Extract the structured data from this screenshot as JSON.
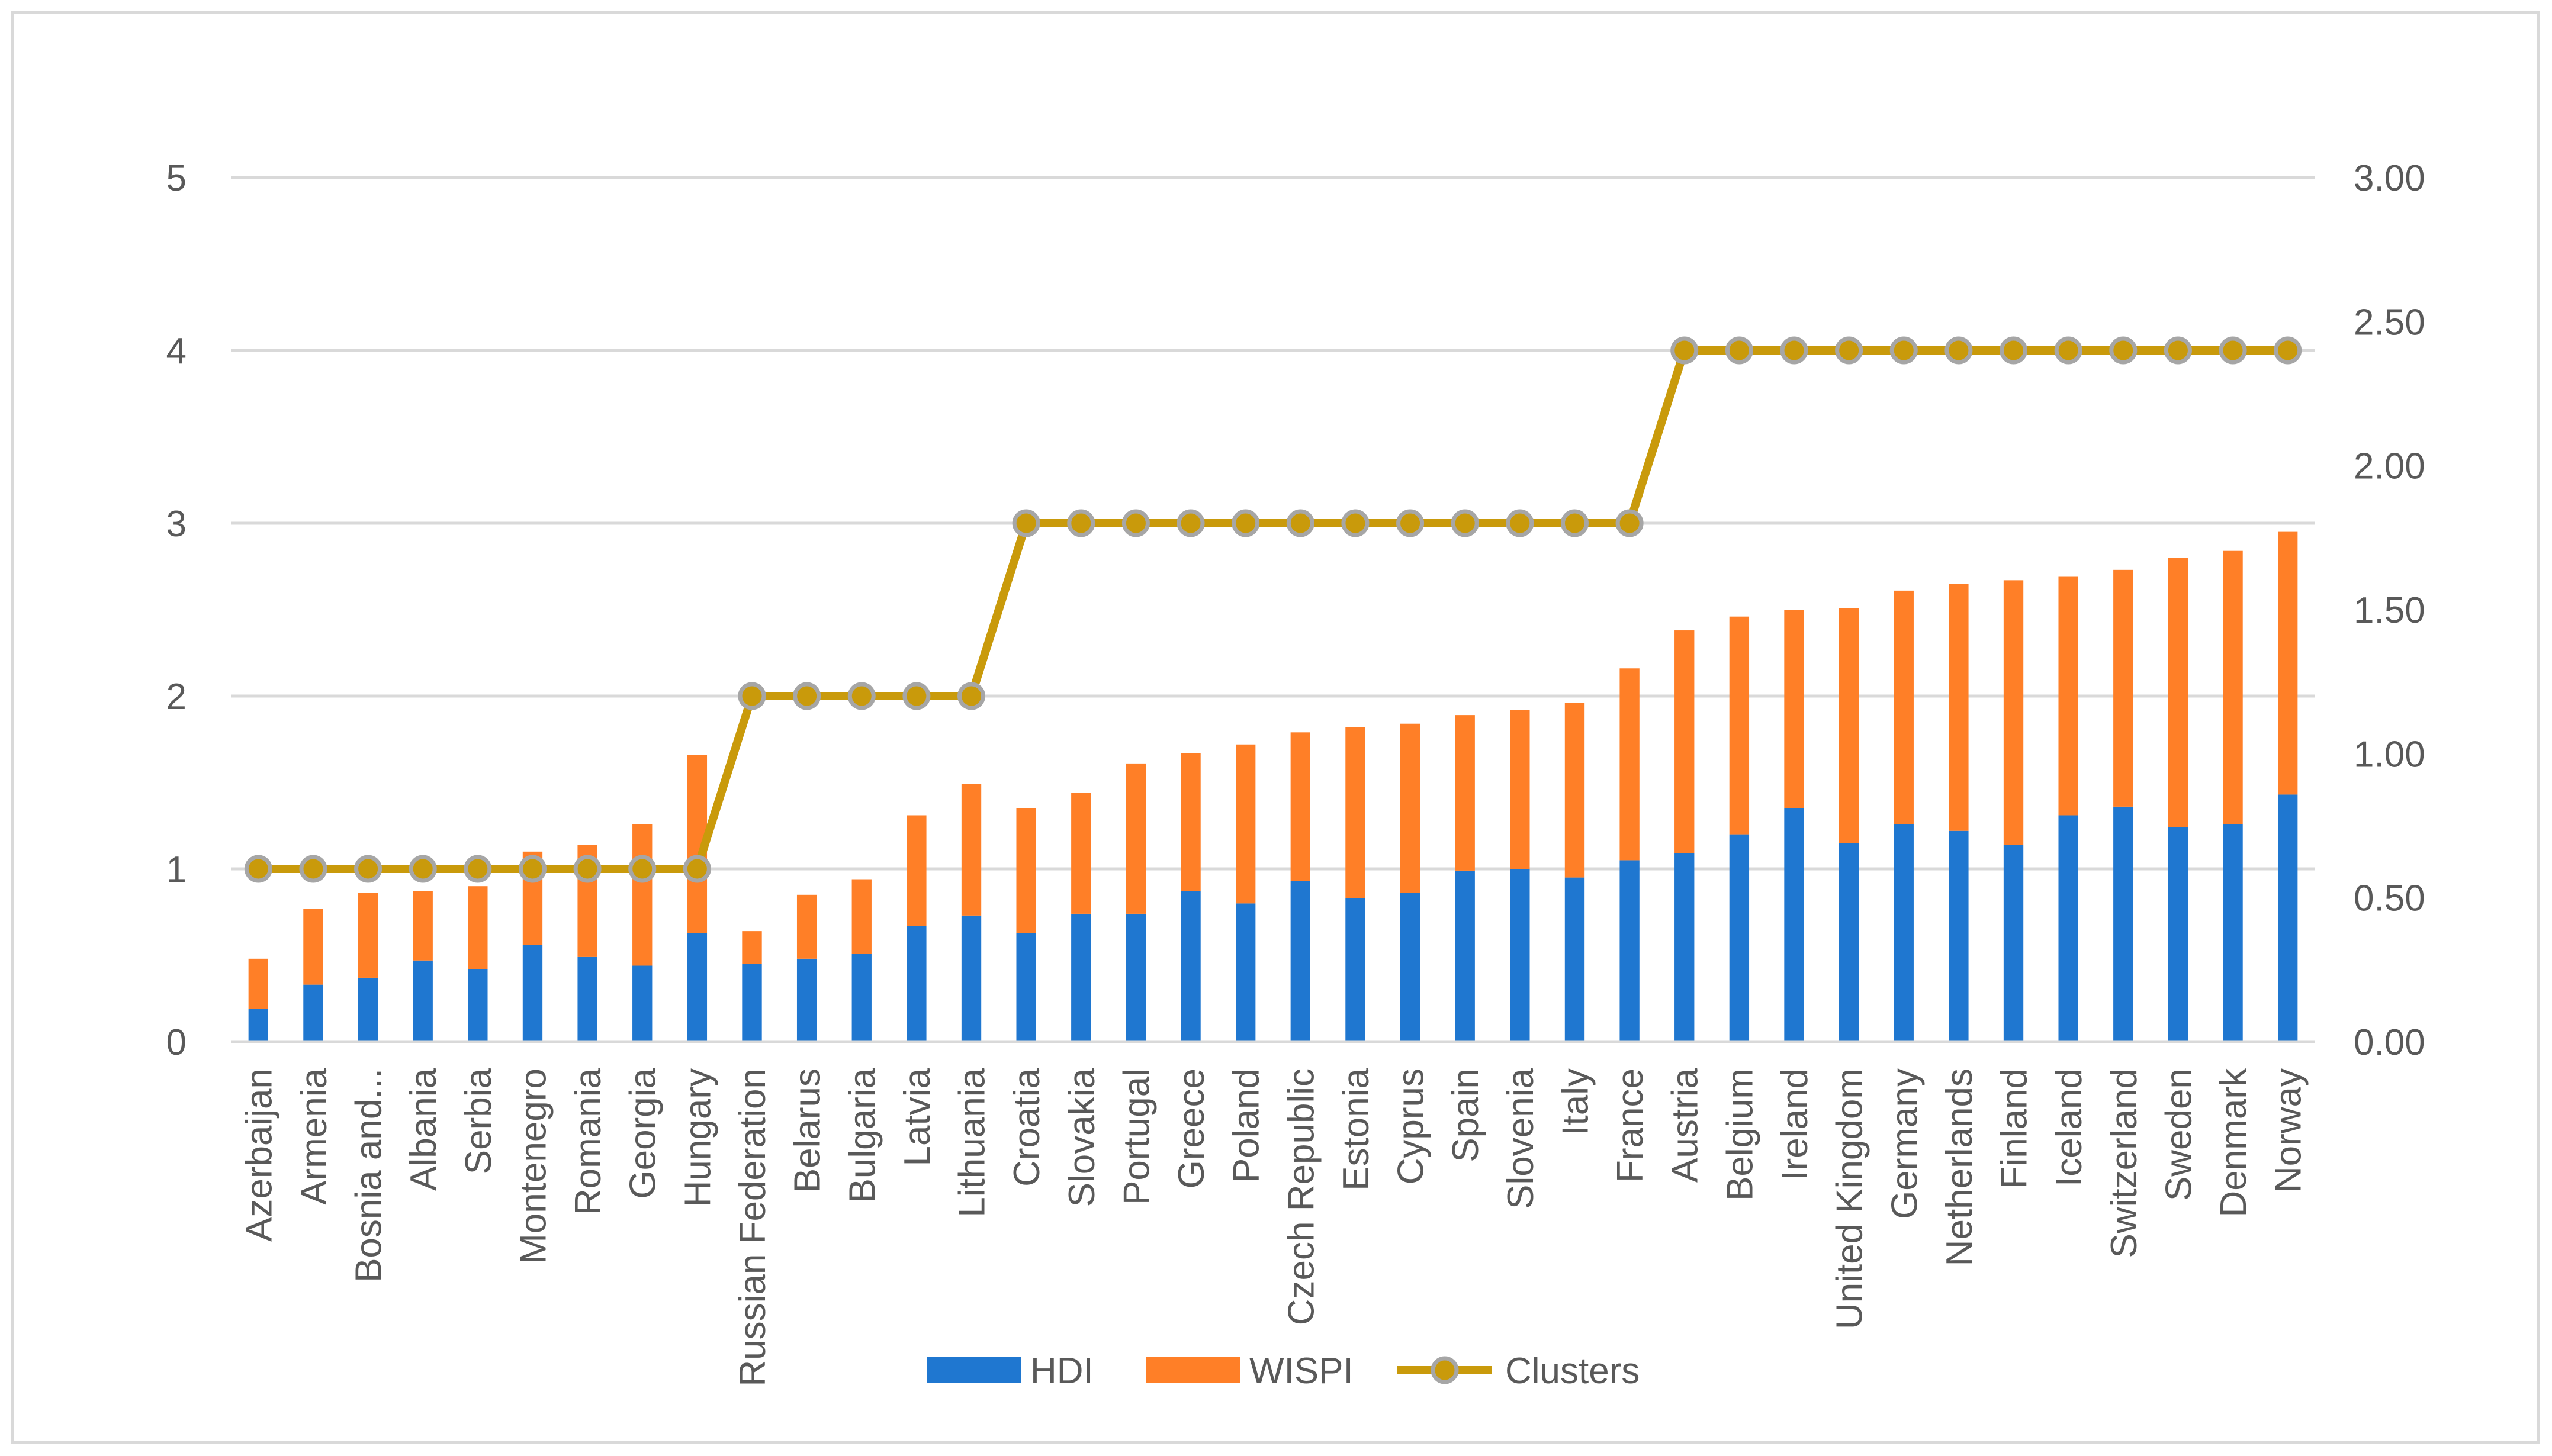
{
  "chart_data": {
    "type": "bar",
    "stacked": true,
    "title": "",
    "xlabel": "",
    "ylabel": "",
    "ylim": [
      0,
      5
    ],
    "y_ticks": [
      "0",
      "1",
      "2",
      "3",
      "4",
      "5"
    ],
    "y2lim": [
      0,
      3
    ],
    "y2_ticks": [
      "0.00",
      "0.50",
      "1.00",
      "1.50",
      "2.00",
      "2.50",
      "3.00"
    ],
    "grid": true,
    "legend_position": "bottom",
    "categories": [
      "Azerbaijan",
      "Armenia",
      "Bosnia and...",
      "Albania",
      "Serbia",
      "Montenegro",
      "Romania",
      "Georgia",
      "Hungary",
      "Russian Federation",
      "Belarus",
      "Bulgaria",
      "Latvia",
      "Lithuania",
      "Croatia",
      "Slovakia",
      "Portugal",
      "Greece",
      "Poland",
      "Czech Republic",
      "Estonia",
      "Cyprus",
      "Spain",
      "Slovenia",
      "Italy",
      "France",
      "Austria",
      "Belgium",
      "Ireland",
      "United Kingdom",
      "Germany",
      "Netherlands",
      "Finland",
      "Iceland",
      "Switzerland",
      "Sweden",
      "Denmark",
      "Norway"
    ],
    "series": [
      {
        "name": "HDI",
        "type": "bar",
        "axis": "left",
        "color": "#1f77d0",
        "values": [
          0.19,
          0.33,
          0.37,
          0.47,
          0.42,
          0.56,
          0.49,
          0.44,
          0.63,
          0.45,
          0.48,
          0.51,
          0.67,
          0.73,
          0.63,
          0.74,
          0.74,
          0.87,
          0.8,
          0.93,
          0.83,
          0.86,
          0.99,
          1.0,
          0.95,
          1.05,
          1.09,
          1.2,
          1.35,
          1.15,
          1.26,
          1.22,
          1.14,
          1.31,
          1.36,
          1.24,
          1.26,
          1.43
        ]
      },
      {
        "name": "WISPI",
        "type": "bar",
        "axis": "left",
        "color": "#ff7f27",
        "values": [
          0.29,
          0.44,
          0.49,
          0.4,
          0.48,
          0.54,
          0.65,
          0.82,
          1.03,
          0.19,
          0.37,
          0.43,
          0.64,
          0.76,
          0.72,
          0.7,
          0.87,
          0.8,
          0.92,
          0.86,
          0.99,
          0.98,
          0.9,
          0.92,
          1.01,
          1.11,
          1.29,
          1.26,
          1.15,
          1.36,
          1.35,
          1.43,
          1.53,
          1.38,
          1.37,
          1.56,
          1.58,
          1.52
        ]
      },
      {
        "name": "Clusters",
        "type": "line",
        "axis": "right",
        "color": "#c99a0b",
        "values": [
          0.6,
          0.6,
          0.6,
          0.6,
          0.6,
          0.6,
          0.6,
          0.6,
          0.6,
          1.2,
          1.2,
          1.2,
          1.2,
          1.2,
          1.8,
          1.8,
          1.8,
          1.8,
          1.8,
          1.8,
          1.8,
          1.8,
          1.8,
          1.8,
          1.8,
          1.8,
          2.4,
          2.4,
          2.4,
          2.4,
          2.4,
          2.4,
          2.4,
          2.4,
          2.4,
          2.4,
          2.4,
          2.4
        ]
      }
    ]
  }
}
